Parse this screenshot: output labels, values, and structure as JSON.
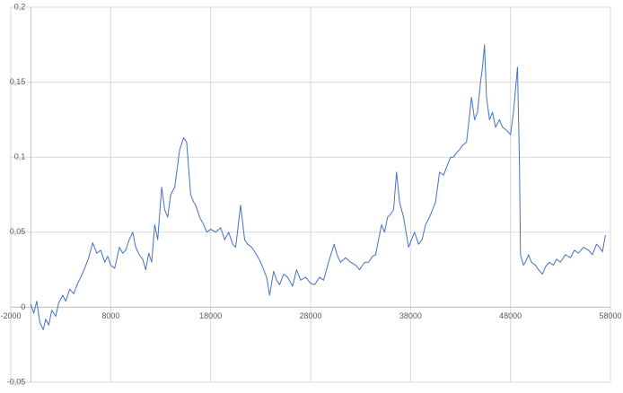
{
  "chart_data": {
    "type": "line",
    "color": "#4472c4",
    "grid": true,
    "xlim": [
      -2000,
      58000
    ],
    "xticks": [
      -2000,
      8000,
      18000,
      28000,
      38000,
      48000,
      58000
    ],
    "ylim": [
      -0.05,
      0.2
    ],
    "yticks": [
      {
        "value": -0.05,
        "label": "-0,05"
      },
      0,
      {
        "value": 0.05,
        "label": "0,05"
      },
      {
        "value": 0.1,
        "label": "0,1"
      },
      {
        "value": 0.15,
        "label": "0,15"
      },
      {
        "value": 0.2,
        "label": "0,2"
      }
    ],
    "x": [
      0,
      300,
      600,
      900,
      1250,
      1500,
      1800,
      2100,
      2500,
      2800,
      3200,
      3500,
      3900,
      4300,
      4700,
      5000,
      5400,
      5800,
      6200,
      6600,
      7000,
      7400,
      7700,
      8000,
      8400,
      8870,
      9200,
      9500,
      9850,
      10200,
      10500,
      10850,
      11200,
      11500,
      11800,
      12100,
      12400,
      12700,
      13100,
      13400,
      13700,
      14000,
      14400,
      14900,
      15300,
      15600,
      16000,
      16300,
      16500,
      16900,
      17300,
      17600,
      18000,
      18500,
      19000,
      19400,
      19800,
      20200,
      20500,
      21000,
      21400,
      21700,
      22100,
      22600,
      23000,
      23300,
      23600,
      23900,
      24300,
      24600,
      24900,
      25300,
      25700,
      26200,
      26600,
      27000,
      27500,
      28000,
      28400,
      28900,
      29300,
      29800,
      30350,
      30700,
      31000,
      31500,
      32000,
      32500,
      32900,
      33400,
      33800,
      34200,
      34500,
      34800,
      35100,
      35400,
      35700,
      36000,
      36300,
      36600,
      36900,
      37300,
      37800,
      38100,
      38400,
      38800,
      39150,
      39500,
      39900,
      40200,
      40500,
      40900,
      41300,
      41700,
      42000,
      42300,
      42600,
      42900,
      43200,
      43600,
      44100,
      44400,
      44700,
      45000,
      45200,
      45400,
      45600,
      45900,
      46200,
      46500,
      46900,
      47200,
      47600,
      48000,
      48300,
      48500,
      48700,
      48900,
      49000,
      49300,
      49500,
      49800,
      50100,
      50500,
      50800,
      51200,
      51500,
      51900,
      52300,
      52600,
      53000,
      53500,
      54000,
      54400,
      54800,
      55300,
      55800,
      56200,
      56600,
      56900,
      57200,
      57500
    ],
    "values": [
      0.002,
      -0.004,
      0.004,
      -0.01,
      -0.015,
      -0.008,
      -0.012,
      -0.002,
      -0.006,
      0.003,
      0.008,
      0.004,
      0.012,
      0.009,
      0.016,
      0.02,
      0.026,
      0.033,
      0.043,
      0.036,
      0.038,
      0.03,
      0.034,
      0.028,
      0.026,
      0.04,
      0.036,
      0.038,
      0.045,
      0.05,
      0.04,
      0.035,
      0.032,
      0.025,
      0.036,
      0.03,
      0.055,
      0.045,
      0.08,
      0.065,
      0.06,
      0.075,
      0.08,
      0.105,
      0.113,
      0.11,
      0.075,
      0.07,
      0.068,
      0.06,
      0.055,
      0.05,
      0.052,
      0.05,
      0.053,
      0.045,
      0.05,
      0.042,
      0.04,
      0.068,
      0.045,
      0.042,
      0.04,
      0.035,
      0.03,
      0.025,
      0.02,
      0.008,
      0.024,
      0.018,
      0.015,
      0.022,
      0.02,
      0.014,
      0.025,
      0.018,
      0.02,
      0.016,
      0.015,
      0.02,
      0.018,
      0.03,
      0.042,
      0.034,
      0.03,
      0.033,
      0.03,
      0.028,
      0.025,
      0.03,
      0.03,
      0.034,
      0.035,
      0.045,
      0.055,
      0.05,
      0.06,
      0.062,
      0.065,
      0.09,
      0.07,
      0.06,
      0.04,
      0.045,
      0.05,
      0.042,
      0.045,
      0.055,
      0.06,
      0.065,
      0.07,
      0.09,
      0.088,
      0.095,
      0.1,
      0.1,
      0.103,
      0.105,
      0.108,
      0.11,
      0.14,
      0.125,
      0.13,
      0.15,
      0.16,
      0.175,
      0.14,
      0.125,
      0.13,
      0.12,
      0.125,
      0.12,
      0.118,
      0.115,
      0.13,
      0.145,
      0.16,
      0.095,
      0.035,
      0.028,
      0.03,
      0.035,
      0.03,
      0.028,
      0.025,
      0.022,
      0.027,
      0.03,
      0.028,
      0.032,
      0.03,
      0.035,
      0.033,
      0.038,
      0.036,
      0.04,
      0.038,
      0.035,
      0.042,
      0.04,
      0.037,
      0.048
    ]
  }
}
